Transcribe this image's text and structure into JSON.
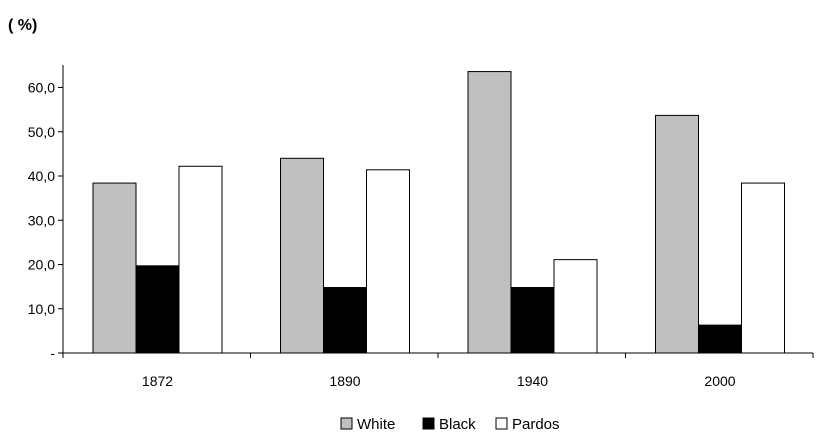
{
  "chart_data": {
    "type": "bar",
    "unit_label": "( %)",
    "categories": [
      "1872",
      "1890",
      "1940",
      "2000"
    ],
    "series": [
      {
        "name": "White",
        "color": "#c0c0c0",
        "values": [
          38.4,
          44.0,
          63.6,
          53.7
        ]
      },
      {
        "name": "Black",
        "color": "#000000",
        "values": [
          19.7,
          14.8,
          14.8,
          6.3
        ]
      },
      {
        "name": "Pardos",
        "color": "#ffffff",
        "values": [
          42.2,
          41.4,
          21.1,
          38.4
        ]
      }
    ],
    "ylim": [
      0,
      65
    ],
    "yticks": [
      0,
      10,
      20,
      30,
      40,
      50,
      60
    ],
    "ytick_labels": [
      "-",
      "10,0",
      "20,0",
      "30,0",
      "40,0",
      "50,0",
      "60,0"
    ],
    "grid": false,
    "legend_position": "bottom-center"
  }
}
